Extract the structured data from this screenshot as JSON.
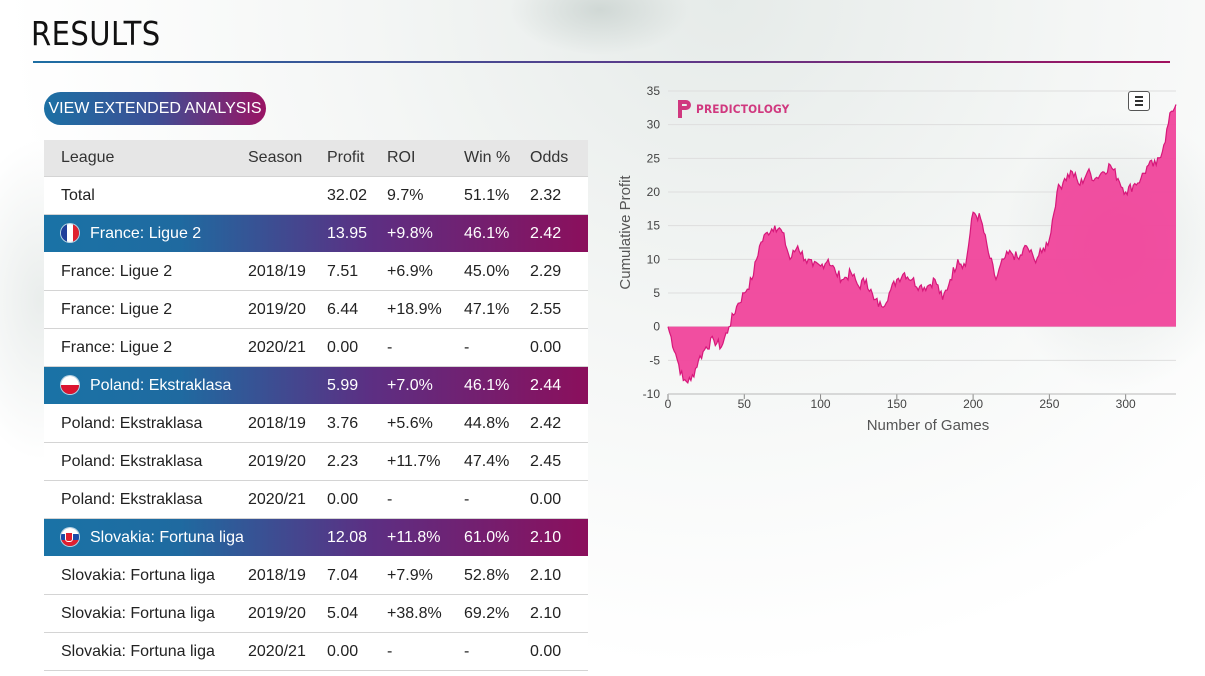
{
  "page": {
    "title": "RESULTS",
    "button_label": "VIEW EXTENDED ANALYSIS"
  },
  "table": {
    "headers": [
      "League",
      "Season",
      "Profit",
      "ROI",
      "Win %",
      "Odds"
    ],
    "total": [
      "Total",
      "",
      "32.02",
      "9.7%",
      "51.1%",
      "2.32"
    ],
    "groups": [
      {
        "flag": "flag-france",
        "summary": [
          "France: Ligue 2",
          "",
          "13.95",
          "+9.8%",
          "46.1%",
          "2.42"
        ],
        "rows": [
          [
            "France: Ligue 2",
            "2018/19",
            "7.51",
            "+6.9%",
            "45.0%",
            "2.29"
          ],
          [
            "France: Ligue 2",
            "2019/20",
            "6.44",
            "+18.9%",
            "47.1%",
            "2.55"
          ],
          [
            "France: Ligue 2",
            "2020/21",
            "0.00",
            "-",
            "-",
            "0.00"
          ]
        ]
      },
      {
        "flag": "flag-poland",
        "summary": [
          "Poland: Ekstraklasa",
          "",
          "5.99",
          "+7.0%",
          "46.1%",
          "2.44"
        ],
        "rows": [
          [
            "Poland: Ekstraklasa",
            "2018/19",
            "3.76",
            "+5.6%",
            "44.8%",
            "2.42"
          ],
          [
            "Poland: Ekstraklasa",
            "2019/20",
            "2.23",
            "+11.7%",
            "47.4%",
            "2.45"
          ],
          [
            "Poland: Ekstraklasa",
            "2020/21",
            "0.00",
            "-",
            "-",
            "0.00"
          ]
        ]
      },
      {
        "flag": "flag-slovakia",
        "summary": [
          "Slovakia: Fortuna liga",
          "",
          "12.08",
          "+11.8%",
          "61.0%",
          "2.10"
        ],
        "rows": [
          [
            "Slovakia: Fortuna liga",
            "2018/19",
            "7.04",
            "+7.9%",
            "52.8%",
            "2.10"
          ],
          [
            "Slovakia: Fortuna liga",
            "2019/20",
            "5.04",
            "+38.8%",
            "69.2%",
            "2.10"
          ],
          [
            "Slovakia: Fortuna liga",
            "2020/21",
            "0.00",
            "-",
            "-",
            "0.00"
          ]
        ]
      }
    ]
  },
  "colors": {
    "accent_blue": "#1c70a4",
    "accent_magenta": "#9a1464",
    "chart_fill": "#f0449b",
    "chart_line": "#d6187a"
  },
  "chart_data": {
    "type": "area",
    "logo_text": "PREDICTOLOGY",
    "xlabel": "Number of Games",
    "ylabel": "Cumulative Profit",
    "xlim": [
      0,
      333
    ],
    "ylim": [
      -10,
      35
    ],
    "x_ticks": [
      0,
      50,
      100,
      150,
      200,
      250,
      300
    ],
    "y_ticks": [
      35,
      30,
      25,
      20,
      15,
      10,
      5,
      0,
      -5,
      -10
    ],
    "grid": true,
    "legend": "none",
    "x": [
      0,
      5,
      10,
      15,
      20,
      25,
      30,
      35,
      40,
      45,
      50,
      55,
      60,
      65,
      70,
      75,
      80,
      85,
      90,
      95,
      100,
      105,
      110,
      115,
      120,
      125,
      130,
      135,
      140,
      145,
      150,
      155,
      160,
      165,
      170,
      175,
      180,
      185,
      190,
      195,
      200,
      205,
      210,
      215,
      220,
      225,
      230,
      235,
      240,
      245,
      250,
      255,
      260,
      265,
      270,
      275,
      280,
      285,
      290,
      295,
      300,
      305,
      310,
      315,
      320,
      325,
      330,
      333
    ],
    "y": [
      0,
      -4,
      -8,
      -8,
      -5,
      -3,
      -2,
      -3,
      0,
      3,
      5,
      7,
      12,
      14,
      15,
      14,
      10,
      12,
      10,
      9,
      9,
      10,
      8,
      7,
      8,
      6,
      7,
      4,
      3,
      5,
      7,
      8,
      7,
      6,
      6,
      7,
      4,
      7,
      10,
      9,
      17,
      16,
      11,
      7,
      10,
      11,
      10,
      12,
      10,
      11,
      13,
      20,
      22,
      23,
      21,
      23,
      22,
      23,
      24,
      22,
      20,
      21,
      22,
      24,
      24,
      27,
      32,
      33
    ]
  }
}
